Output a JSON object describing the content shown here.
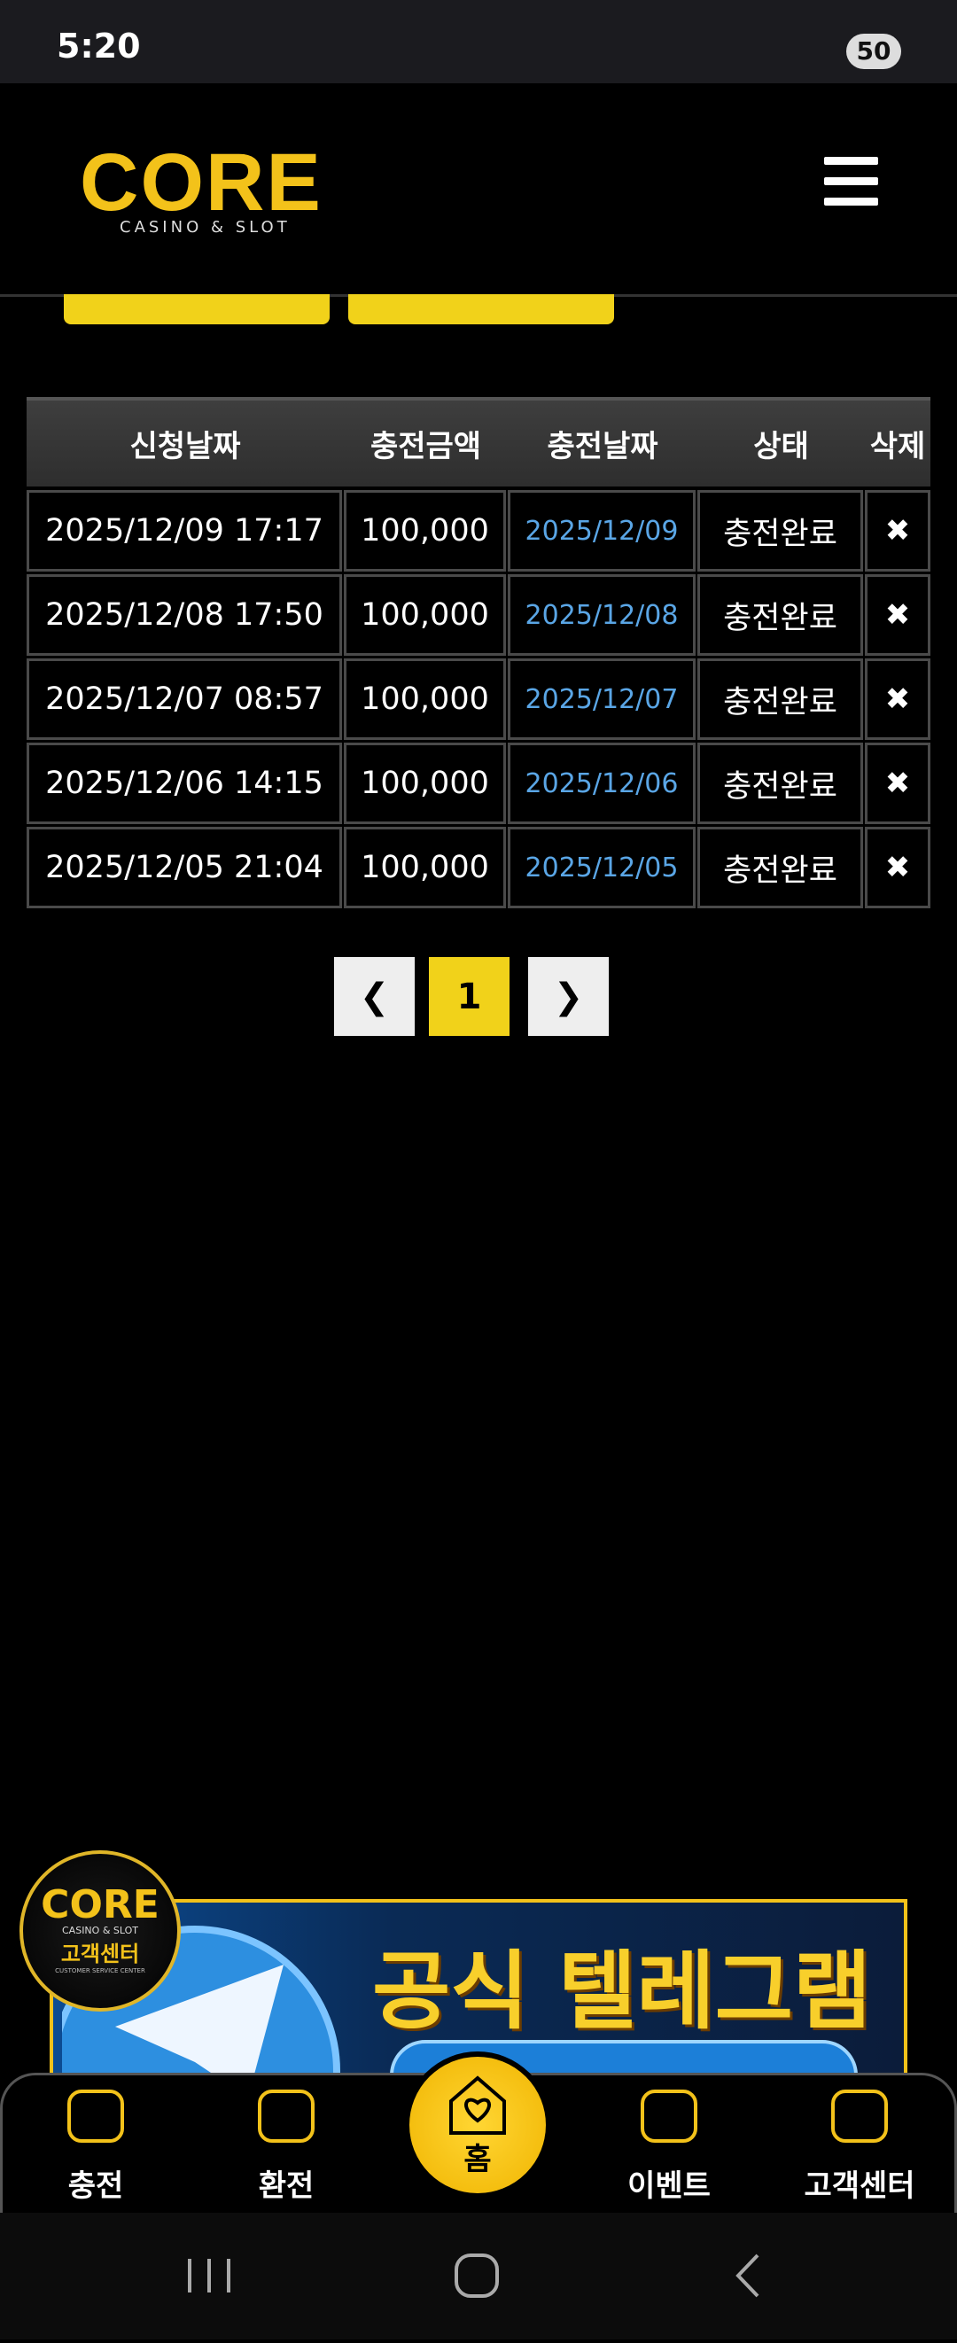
{
  "status_bar": {
    "time": "5:20",
    "battery": "50"
  },
  "header": {
    "logo": "CORE",
    "logo_sub": "CASINO & SLOT"
  },
  "table": {
    "columns": [
      "신청날짜",
      "충전금액",
      "충전날짜",
      "상태",
      "삭제"
    ],
    "rows": [
      [
        "2025/12/09 17:17",
        "100,000",
        "2025/12/09",
        "충전완료"
      ],
      [
        "2025/12/08 17:50",
        "100,000",
        "2025/12/08",
        "충전완료"
      ],
      [
        "2025/12/07 08:57",
        "100,000",
        "2025/12/07",
        "충전완료"
      ],
      [
        "2025/12/06 14:15",
        "100,000",
        "2025/12/06",
        "충전완료"
      ],
      [
        "2025/12/05 21:04",
        "100,000",
        "2025/12/05",
        "충전완료"
      ]
    ]
  },
  "pagination": {
    "current": "1"
  },
  "floating_badge": {
    "logo": "CORE",
    "sub": "CASINO & SLOT",
    "label": "고객센터",
    "caption": "CUSTOMER SERVICE CENTER"
  },
  "banner": {
    "title": "공식 텔레그램"
  },
  "bottom_nav": [
    "충전",
    "환전",
    "홈",
    "이벤트",
    "고객센터"
  ]
}
